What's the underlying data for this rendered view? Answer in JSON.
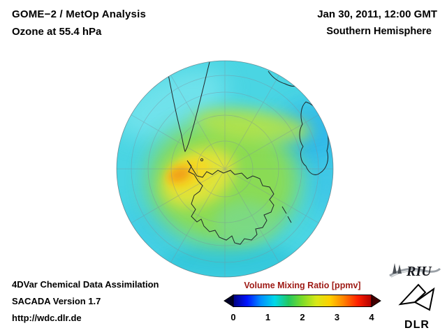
{
  "header": {
    "title_line1": "GOME−2 / MetOp Analysis",
    "title_line2": "Ozone at 55.4 hPa",
    "date_line": "Jan 30, 2011, 12:00 GMT",
    "hemisphere_line": "Southern Hemisphere"
  },
  "map": {
    "subject": "ozone volume mixing ratio field over the Southern Hemisphere",
    "base_color": "#4ad5e3",
    "low_patch_color": "#2eb6e9",
    "mid_color": "#8edc4e",
    "high_color": "#f4d824",
    "peak_color": "#f29c14"
  },
  "colorbar": {
    "title": "Volume Mixing Ratio [ppmv]",
    "title_color": "#9e1a15",
    "ticks": [
      "0",
      "1",
      "2",
      "3",
      "4"
    ],
    "gradient": [
      "#000080",
      "#0014ff",
      "#0090ff",
      "#00d8e8",
      "#22c860",
      "#7ddc28",
      "#d8e818",
      "#ffd000",
      "#ff8000",
      "#ff2000",
      "#b00000"
    ],
    "arrow_left_color": "#000028",
    "arrow_right_color": "#420000"
  },
  "footer": {
    "line1": "4DVar Chemical Data Assimilation",
    "line2": "SACADA Version 1.7",
    "line3": "http://wdc.dlr.de"
  },
  "logos": {
    "riu_label": "RIU",
    "dlr_label": "DLR"
  }
}
